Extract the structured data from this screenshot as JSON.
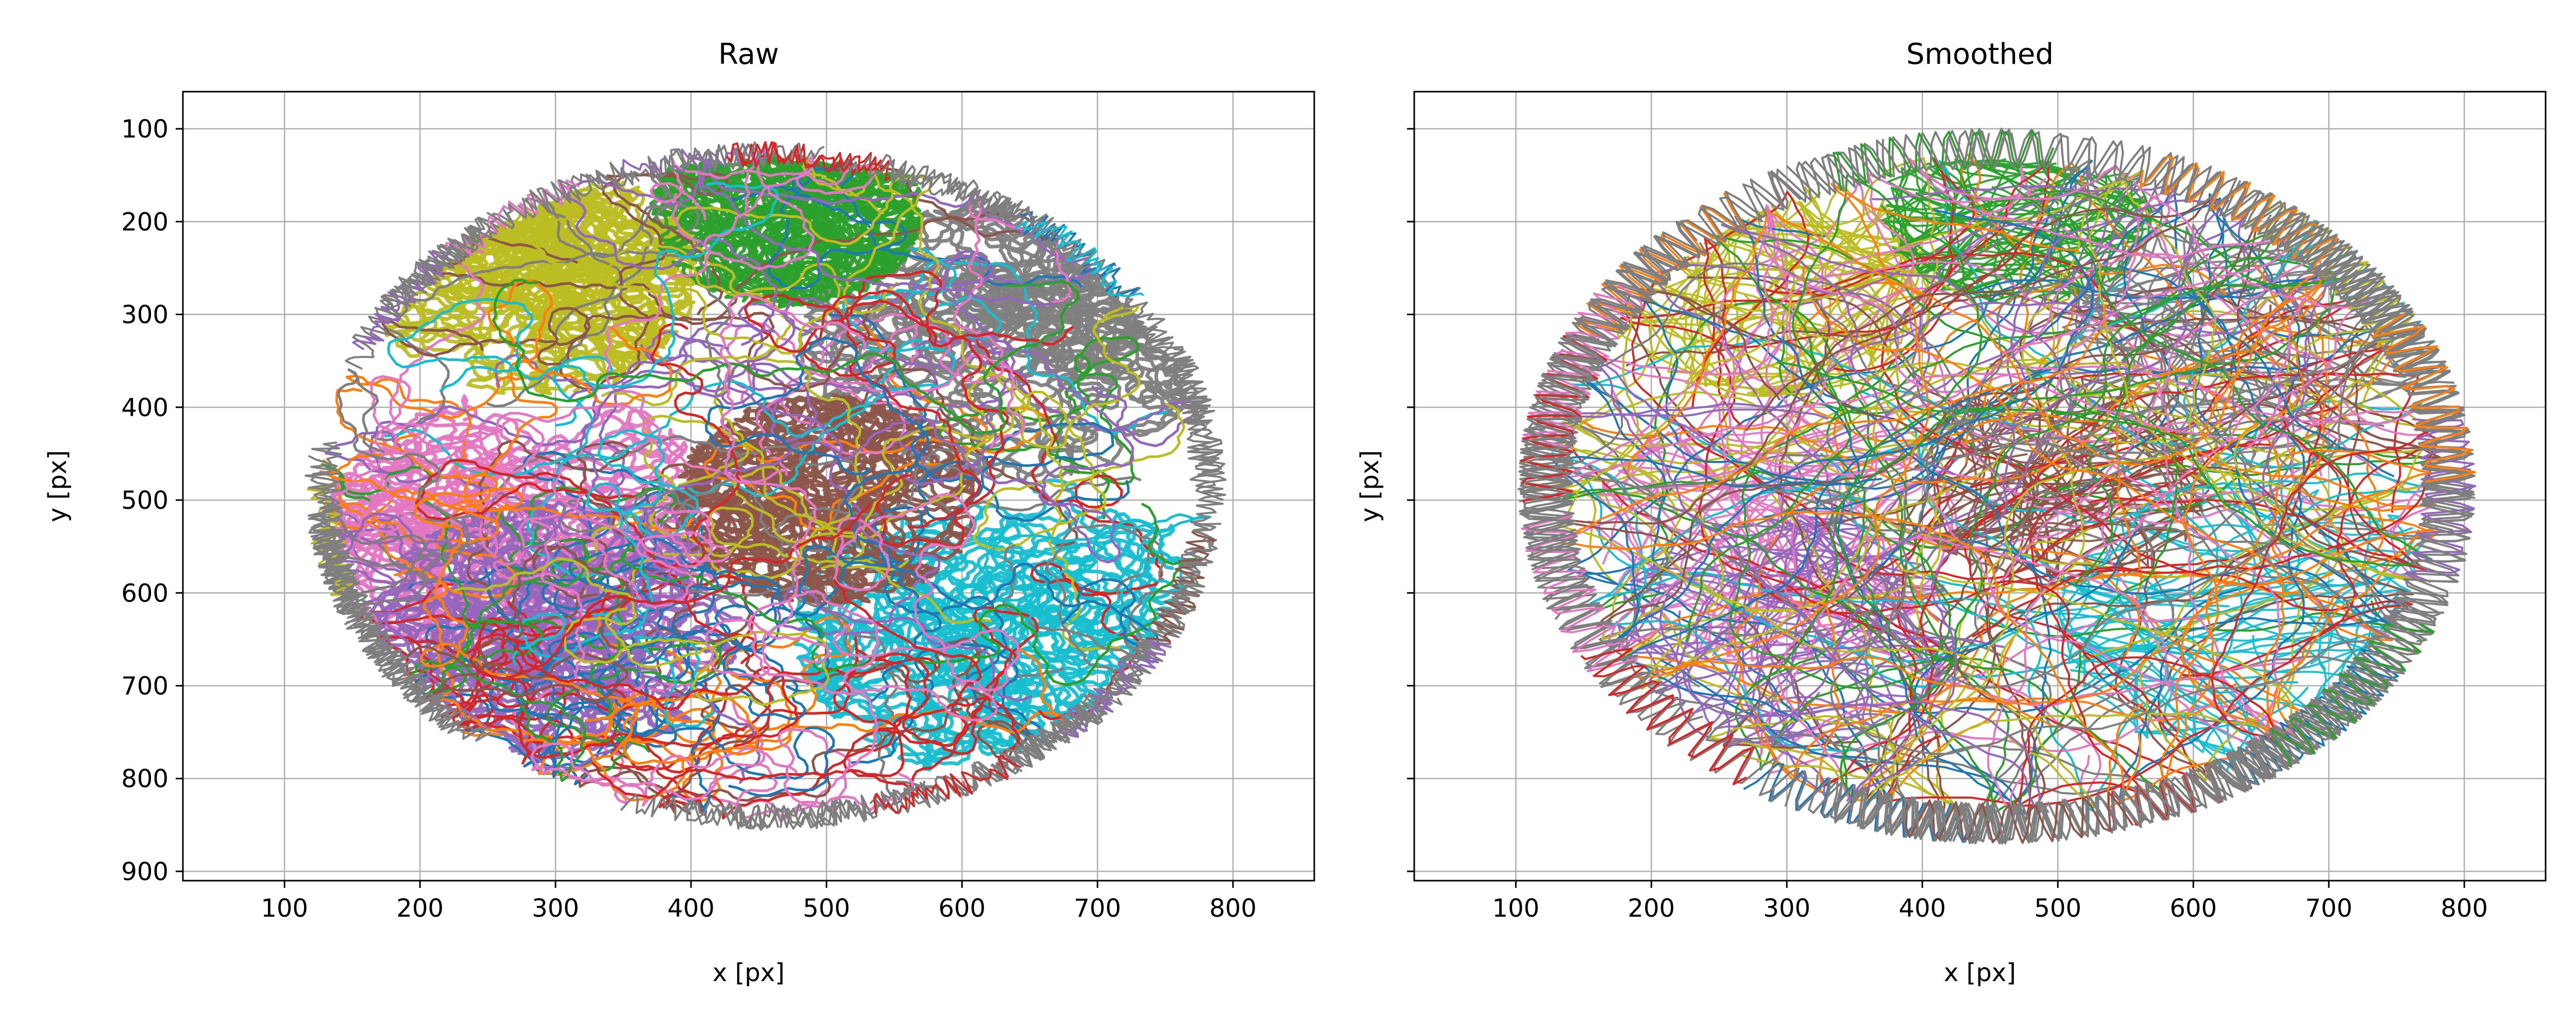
{
  "figure": {
    "background": "#ffffff",
    "tracks_note_colors": [
      "#1f77b4",
      "#ff7f0e",
      "#2ca02c",
      "#d62728",
      "#9467bd",
      "#8c564b",
      "#e377c2",
      "#7f7f7f",
      "#bcbd22",
      "#17becf"
    ]
  },
  "chart_data": [
    {
      "type": "line",
      "title": "Raw",
      "xlabel": "x [px]",
      "ylabel": "y [px]",
      "xlim": [
        25,
        860
      ],
      "ylim": [
        910,
        60
      ],
      "y_inverted": true,
      "xticks": [
        100,
        200,
        300,
        400,
        500,
        600,
        700,
        800
      ],
      "yticks": [
        100,
        200,
        300,
        400,
        500,
        600,
        700,
        800,
        900
      ],
      "grid": true,
      "legend": "none",
      "style": "raw",
      "region": {
        "cx": 455,
        "cy": 485,
        "rx": 330,
        "ry": 360
      },
      "colors": [
        "#1f77b4",
        "#ff7f0e",
        "#2ca02c",
        "#d62728",
        "#9467bd",
        "#8c564b",
        "#e377c2",
        "#7f7f7f",
        "#bcbd22",
        "#17becf"
      ],
      "dominant_zones": [
        {
          "color": "#e377c2",
          "cx": 280,
          "cy": 530,
          "r": 120
        },
        {
          "color": "#9467bd",
          "cx": 300,
          "cy": 640,
          "r": 110
        },
        {
          "color": "#17becf",
          "cx": 640,
          "cy": 640,
          "r": 130
        },
        {
          "color": "#7f7f7f",
          "cx": 630,
          "cy": 330,
          "r": 120
        },
        {
          "color": "#bcbd22",
          "cx": 280,
          "cy": 260,
          "r": 100
        },
        {
          "color": "#8c564b",
          "cx": 500,
          "cy": 500,
          "r": 90
        },
        {
          "color": "#2ca02c",
          "cx": 470,
          "cy": 190,
          "r": 80
        }
      ]
    },
    {
      "type": "line",
      "title": "Smoothed",
      "xlabel": "x [px]",
      "ylabel": "y [px]",
      "xlim": [
        25,
        860
      ],
      "ylim": [
        910,
        60
      ],
      "y_inverted": true,
      "xticks": [
        100,
        200,
        300,
        400,
        500,
        600,
        700,
        800
      ],
      "yticks": [
        100,
        200,
        300,
        400,
        500,
        600,
        700,
        800,
        900
      ],
      "ytick_labels_shown": false,
      "grid": true,
      "legend": "none",
      "style": "smoothed",
      "region": {
        "cx": 455,
        "cy": 485,
        "rx": 330,
        "ry": 360
      },
      "colors": [
        "#1f77b4",
        "#ff7f0e",
        "#2ca02c",
        "#d62728",
        "#9467bd",
        "#8c564b",
        "#e377c2",
        "#7f7f7f",
        "#bcbd22",
        "#17becf"
      ],
      "dominant_zones": [
        {
          "color": "#e377c2",
          "cx": 290,
          "cy": 540,
          "r": 110
        },
        {
          "color": "#9467bd",
          "cx": 300,
          "cy": 640,
          "r": 100
        },
        {
          "color": "#17becf",
          "cx": 650,
          "cy": 630,
          "r": 120
        },
        {
          "color": "#7f7f7f",
          "cx": 640,
          "cy": 330,
          "r": 110
        },
        {
          "color": "#bcbd22",
          "cx": 280,
          "cy": 260,
          "r": 100
        },
        {
          "color": "#8c564b",
          "cx": 500,
          "cy": 480,
          "r": 90
        },
        {
          "color": "#2ca02c",
          "cx": 470,
          "cy": 190,
          "r": 80
        }
      ]
    }
  ]
}
